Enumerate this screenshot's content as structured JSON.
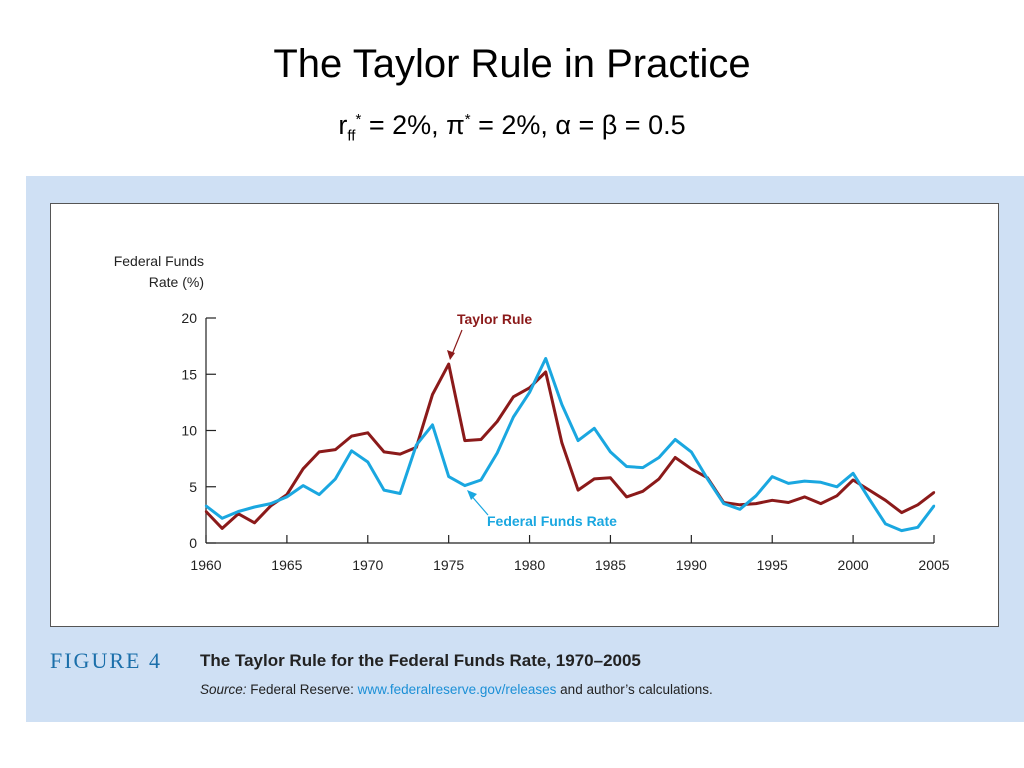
{
  "slide": {
    "title": "The Taylor Rule in Practice",
    "subtitle": {
      "r": "r",
      "r_sub": "ff",
      "r_sup": "*",
      "part1": " = 2%, π",
      "pi_sup": "*",
      "part2": " = 2%, α = β = 0.5"
    }
  },
  "caption": {
    "figure_label": "FIGURE 4",
    "title": "The Taylor Rule for the Federal Funds Rate, 1970–2005",
    "source_label": "Source:",
    "source_text": " Federal Reserve: ",
    "source_link": "www.federalreserve.gov/releases",
    "source_tail": " and author’s calculations."
  },
  "chart_data": {
    "type": "line",
    "ylabel_line1": "Federal Funds",
    "ylabel_line2": "Rate (%)",
    "xlim": [
      1960,
      2005
    ],
    "ylim": [
      0,
      20
    ],
    "yticks": [
      0,
      5,
      10,
      15,
      20
    ],
    "xticks": [
      1960,
      1965,
      1970,
      1975,
      1980,
      1985,
      1990,
      1995,
      2000,
      2005
    ],
    "x": [
      1960,
      1961,
      1962,
      1963,
      1964,
      1965,
      1966,
      1967,
      1968,
      1969,
      1970,
      1971,
      1972,
      1973,
      1974,
      1975,
      1976,
      1977,
      1978,
      1979,
      1980,
      1981,
      1982,
      1983,
      1984,
      1985,
      1986,
      1987,
      1988,
      1989,
      1990,
      1991,
      1992,
      1993,
      1994,
      1995,
      1996,
      1997,
      1998,
      1999,
      2000,
      2001,
      2002,
      2003,
      2004,
      2005
    ],
    "series": [
      {
        "name": "Taylor Rule",
        "color": "#8b1a1a",
        "values": [
          2.8,
          1.3,
          2.6,
          1.8,
          3.3,
          4.3,
          6.6,
          8.1,
          8.3,
          9.5,
          9.8,
          8.1,
          7.9,
          8.5,
          13.2,
          15.9,
          9.1,
          9.2,
          10.8,
          13.0,
          13.8,
          15.2,
          8.9,
          4.7,
          5.7,
          5.8,
          4.1,
          4.6,
          5.7,
          7.6,
          6.6,
          5.8,
          3.6,
          3.4,
          3.5,
          3.8,
          3.6,
          4.1,
          3.5,
          4.2,
          5.6,
          4.7,
          3.8,
          2.7,
          3.4,
          4.5
        ]
      },
      {
        "name": "Federal Funds Rate",
        "color": "#1aa7e0",
        "values": [
          3.3,
          2.2,
          2.8,
          3.2,
          3.5,
          4.1,
          5.1,
          4.3,
          5.7,
          8.2,
          7.2,
          4.7,
          4.4,
          8.7,
          10.5,
          5.9,
          5.1,
          5.6,
          8.0,
          11.2,
          13.4,
          16.4,
          12.3,
          9.1,
          10.2,
          8.1,
          6.8,
          6.7,
          7.6,
          9.2,
          8.1,
          5.7,
          3.5,
          3.0,
          4.2,
          5.9,
          5.3,
          5.5,
          5.4,
          5.0,
          6.2,
          3.9,
          1.7,
          1.1,
          1.4,
          3.3
        ]
      }
    ]
  }
}
